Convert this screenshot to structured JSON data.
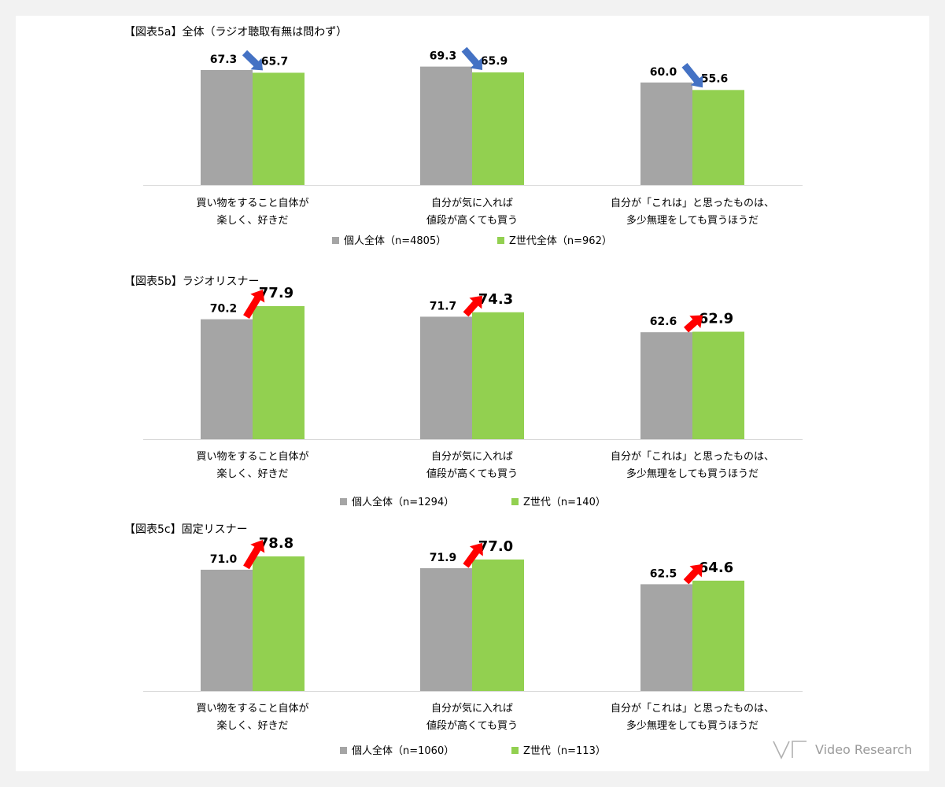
{
  "chart_data": [
    {
      "type": "bar",
      "title": "【図表5a】全体（ラジオ聴取有無は問わず）",
      "categories": [
        [
          "買い物をすること自体が",
          "楽しく、好きだ"
        ],
        [
          "自分が気に入れば",
          "値段が高くても買う"
        ],
        [
          "自分が「これは」と思ったものは、",
          "多少無理をしても買うほうだ"
        ]
      ],
      "series": [
        {
          "name": "個人全体（n=4805）",
          "values": [
            67.3,
            69.3,
            60.0
          ],
          "color": "#a5a5a5"
        },
        {
          "name": "Z世代全体（n=962）",
          "values": [
            65.7,
            65.9,
            55.6
          ],
          "color": "#92d050"
        }
      ],
      "arrow_direction": "down",
      "arrow_color": "#4472c4",
      "highlight_second": false
    },
    {
      "type": "bar",
      "title": "【図表5b】ラジオリスナー",
      "categories": [
        [
          "買い物をすること自体が",
          "楽しく、好きだ"
        ],
        [
          "自分が気に入れば",
          "値段が高くても買う"
        ],
        [
          "自分が「これは」と思ったものは、",
          "多少無理をしても買うほうだ"
        ]
      ],
      "series": [
        {
          "name": "個人全体（n=1294）",
          "values": [
            70.2,
            71.7,
            62.6
          ],
          "color": "#a5a5a5"
        },
        {
          "name": "Z世代（n=140）",
          "values": [
            77.9,
            74.3,
            62.9
          ],
          "color": "#92d050"
        }
      ],
      "arrow_direction": "up",
      "arrow_color": "#ff0000",
      "highlight_second": true
    },
    {
      "type": "bar",
      "title": "【図表5c】固定リスナー",
      "categories": [
        [
          "買い物をすること自体が",
          "楽しく、好きだ"
        ],
        [
          "自分が気に入れば",
          "値段が高くても買う"
        ],
        [
          "自分が「これは」と思ったものは、",
          "多少無理をしても買うほうだ"
        ]
      ],
      "series": [
        {
          "name": "個人全体（n=1060）",
          "values": [
            71.0,
            71.9,
            62.5
          ],
          "color": "#a5a5a5"
        },
        {
          "name": "Z世代（n=113）",
          "values": [
            78.8,
            77.0,
            64.6
          ],
          "color": "#92d050"
        }
      ],
      "arrow_direction": "up",
      "arrow_color": "#ff0000",
      "highlight_second": true
    }
  ],
  "logo": {
    "text": "Video Research"
  }
}
